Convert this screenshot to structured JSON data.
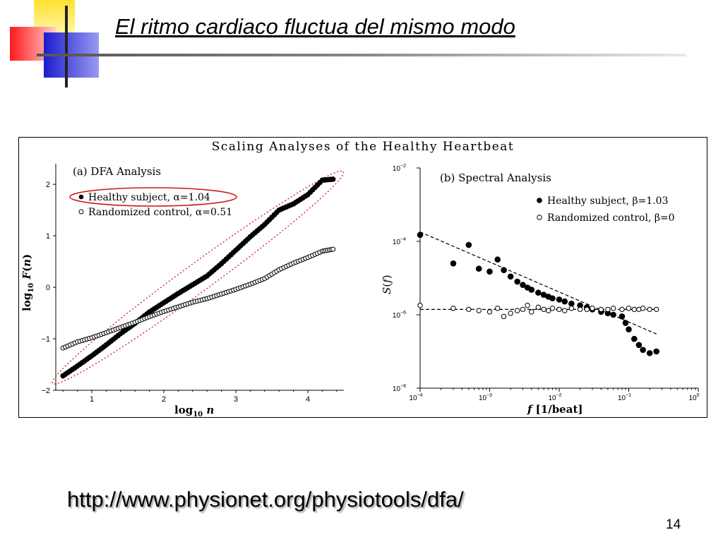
{
  "slide": {
    "title": "El ritmo cardiaco fluctua del mismo modo",
    "url": "http://www.physionet.org/physiotools/dfa/",
    "page_number": "14"
  },
  "figure_title": "Scaling Analyses of the Healthy Heartbeat",
  "colors": {
    "accent_red": "#ff2020",
    "accent_yellow": "#ffea40",
    "accent_blue": "#2a2ad8",
    "highlight_red": "#d01818",
    "marker": "#000000"
  },
  "chart_data": [
    {
      "type": "scatter",
      "title": "(a)  DFA Analysis",
      "xlabel": "log10 n",
      "ylabel": "log10 F(n)",
      "xlim": [
        0.5,
        4.5
      ],
      "ylim": [
        -2,
        2.4
      ],
      "x_ticks": [
        1,
        2,
        3,
        4
      ],
      "y_ticks": [
        -2,
        -1,
        0,
        1,
        2
      ],
      "legend_position": "top-left",
      "series": [
        {
          "name": "Healthy subject, α=1.04",
          "marker": "filled-circle",
          "x": [
            0.6,
            0.8,
            1.0,
            1.2,
            1.4,
            1.6,
            1.8,
            2.0,
            2.2,
            2.4,
            2.6,
            2.8,
            3.0,
            3.2,
            3.4,
            3.6,
            3.8,
            4.0,
            4.2,
            4.35
          ],
          "y": [
            -1.72,
            -1.53,
            -1.33,
            -1.12,
            -0.9,
            -0.7,
            -0.48,
            -0.3,
            -0.12,
            0.05,
            0.22,
            0.46,
            0.72,
            0.98,
            1.22,
            1.5,
            1.62,
            1.8,
            2.08,
            2.1
          ]
        },
        {
          "name": "Randomized control, α=0.51",
          "marker": "open-circle",
          "x": [
            0.6,
            0.8,
            1.0,
            1.2,
            1.4,
            1.6,
            1.8,
            2.0,
            2.2,
            2.4,
            2.6,
            2.8,
            3.0,
            3.2,
            3.4,
            3.6,
            3.8,
            4.0,
            4.2,
            4.35
          ],
          "y": [
            -1.18,
            -1.06,
            -0.98,
            -0.88,
            -0.78,
            -0.68,
            -0.57,
            -0.47,
            -0.38,
            -0.29,
            -0.22,
            -0.13,
            -0.04,
            0.06,
            0.17,
            0.34,
            0.47,
            0.58,
            0.7,
            0.74
          ]
        }
      ]
    },
    {
      "type": "scatter",
      "title": "(b) Spectral Analysis",
      "xlabel": "f  [1/beat]",
      "ylabel": "S(f)",
      "x_scale": "log",
      "y_scale": "log",
      "xlim": [
        0.0001,
        1
      ],
      "ylim": [
        1e-08,
        0.01
      ],
      "x_ticks": [
        0.0001,
        0.001,
        0.01,
        0.1,
        1
      ],
      "x_tick_labels": [
        "10",
        "10",
        "10",
        "10",
        "10"
      ],
      "x_tick_exps": [
        "−4",
        "−3",
        "−2",
        "−1",
        "0"
      ],
      "y_ticks": [
        1e-08,
        1e-06,
        0.0001,
        0.01
      ],
      "y_tick_labels": [
        "10",
        "10",
        "10",
        "10"
      ],
      "y_tick_exps": [
        "−8",
        "−6",
        "−4",
        "−2"
      ],
      "legend_position": "top-right",
      "series": [
        {
          "name": "Healthy subject, β=1.03",
          "marker": "filled-circle",
          "fit_line": {
            "x": [
              0.0001,
              0.25
            ],
            "y": [
              0.00018,
              3e-07
            ]
          },
          "x": [
            0.0001,
            0.0003,
            0.0005,
            0.0007,
            0.001,
            0.0013,
            0.0016,
            0.002,
            0.0025,
            0.003,
            0.0035,
            0.004,
            0.005,
            0.006,
            0.007,
            0.008,
            0.01,
            0.012,
            0.015,
            0.02,
            0.025,
            0.03,
            0.04,
            0.05,
            0.06,
            0.08,
            0.09,
            0.1,
            0.12,
            0.14,
            0.16,
            0.2,
            0.25
          ],
          "y": [
            0.00015,
            2.5e-05,
            8e-05,
            1.8e-05,
            1.5e-05,
            3.2e-05,
            1.65e-05,
            1.1e-05,
            8e-06,
            6.5e-06,
            5.5e-06,
            4.8e-06,
            4e-06,
            3.5e-06,
            3.1e-06,
            2.8e-06,
            2.6e-06,
            2.3e-06,
            2e-06,
            1.8e-06,
            1.6e-06,
            1.4e-06,
            1.2e-06,
            1.1e-06,
            1e-06,
            9e-07,
            6e-07,
            4e-07,
            2.2e-07,
            1.5e-07,
            1.1e-07,
            9e-08,
            1e-07
          ]
        },
        {
          "name": "Randomized control, β=0",
          "marker": "open-circle",
          "fit_line": {
            "x": [
              0.0001,
              0.25
            ],
            "y": [
              1.4e-06,
              1.4e-06
            ]
          },
          "x": [
            0.0001,
            0.0003,
            0.0005,
            0.0007,
            0.001,
            0.0013,
            0.0016,
            0.002,
            0.0025,
            0.003,
            0.0035,
            0.004,
            0.005,
            0.006,
            0.007,
            0.008,
            0.01,
            0.012,
            0.015,
            0.02,
            0.025,
            0.03,
            0.04,
            0.05,
            0.06,
            0.08,
            0.1,
            0.12,
            0.14,
            0.16,
            0.2,
            0.25
          ],
          "y": [
            1.8e-06,
            1.5e-06,
            1.4e-06,
            1.3e-06,
            1.2e-06,
            1.5e-06,
            9e-07,
            1.1e-06,
            1.3e-06,
            1.4e-06,
            1.8e-06,
            1.2e-06,
            1.6e-06,
            1.4e-06,
            1.3e-06,
            1.5e-06,
            1.4e-06,
            1.3e-06,
            1.5e-06,
            1.4e-06,
            1.4e-06,
            1.5e-06,
            1.4e-06,
            1.4e-06,
            1.5e-06,
            1.4e-06,
            1.5e-06,
            1.4e-06,
            1.4e-06,
            1.5e-06,
            1.4e-06,
            1.4e-06
          ]
        }
      ]
    }
  ]
}
